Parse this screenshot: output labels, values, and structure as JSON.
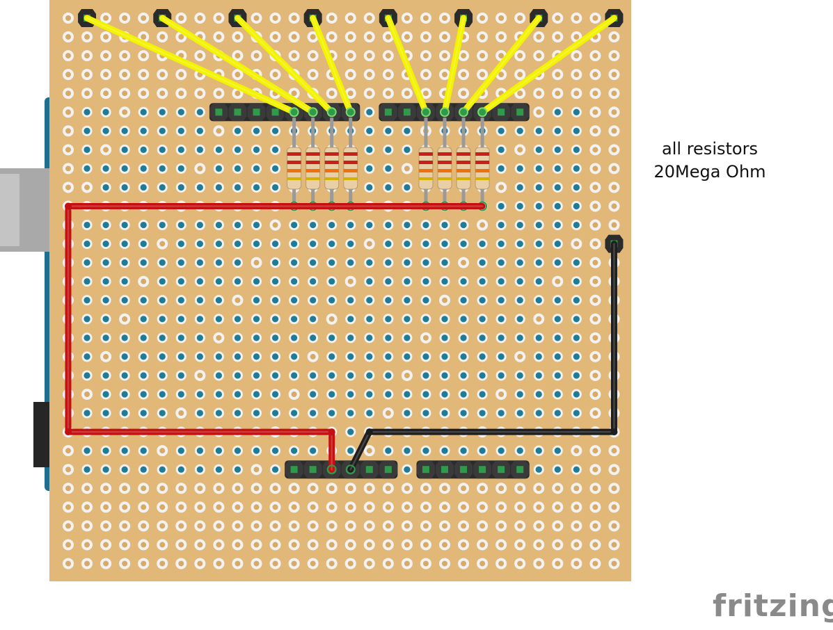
{
  "diagram": {
    "note_lines": [
      "all resistors",
      "20Mega Ohm"
    ],
    "brand": "fritzing",
    "colors": {
      "board": "#e2b878",
      "pad_ring": "#f2f2f2",
      "pad_hole": "#d7ab67",
      "via": "#1f7c94",
      "header": "#2b2b2b",
      "header_pin": "#2f9a48",
      "sensor_wire": "#f3f300",
      "power_wire": "#c41010",
      "ground_wire": "#1e1e1e",
      "resistor_body": "#e8cfa5",
      "band_red": "#c8201a",
      "band_orange": "#ee7010",
      "arduino_edge": "#1d6e91",
      "usb": "#a9a9a9",
      "jack": "#262626",
      "brand": "#8a8a8a"
    }
  }
}
